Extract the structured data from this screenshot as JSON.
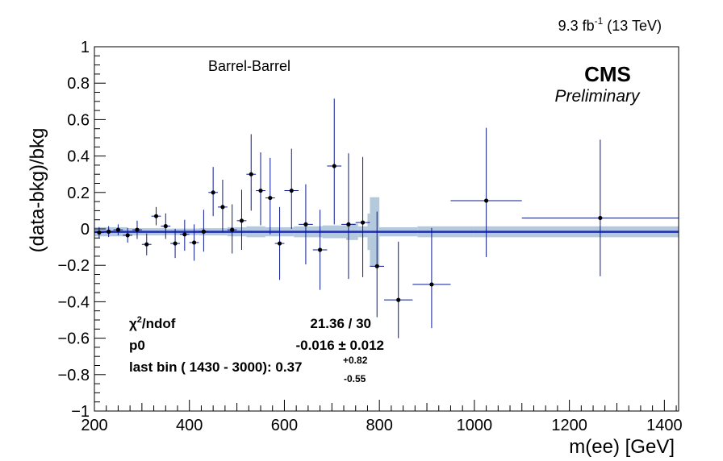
{
  "chart_data": {
    "type": "scatter",
    "lumi_label": "9.3 fb",
    "lumi_sup": "-1",
    "lumi_energy": " (13 TeV)",
    "cms_label": "CMS",
    "prelim_label": "Preliminary",
    "category_label": "Barrel-Barrel",
    "xlabel": "m(ee) [GeV]",
    "ylabel": "(data-bkg)/bkg",
    "xlim": [
      200,
      1430
    ],
    "ylim": [
      -1,
      1
    ],
    "x_ticks": [
      200,
      400,
      600,
      800,
      1000,
      1200,
      1400
    ],
    "x_tick_labels": [
      "200",
      "400",
      "600",
      "800",
      "1000",
      "1200",
      "1400"
    ],
    "y_ticks": [
      -1,
      -0.8,
      -0.6,
      -0.4,
      -0.2,
      0,
      0.2,
      0.4,
      0.6,
      0.8,
      1
    ],
    "y_tick_labels": [
      "−1",
      "−0.8",
      "−0.6",
      "−0.4",
      "−0.2",
      "0",
      "0.2",
      "0.4",
      "0.6",
      "0.8",
      "1"
    ],
    "fit": {
      "p0": -0.016,
      "p0_err": 0.012,
      "chi2_label_chi": "χ",
      "chi2_label_sup": "2",
      "chi2_label_rest": "/ndof",
      "chi2_value": "21.36 / 30",
      "p0_label": "p0",
      "p0_value": "-0.016 ± 0.012",
      "lastbin_label": "last bin ( 1430 - 3000): 0.37",
      "lastbin_up": "+0.82",
      "lastbin_down": "-0.55",
      "line_color": "#1f2fb0"
    },
    "band_color": "#b5c9dd",
    "marker_color": "#000000",
    "errbar_color": "#0b1a8f",
    "band": [
      {
        "x0": 200,
        "x1": 270,
        "half": 0.025
      },
      {
        "x0": 270,
        "x1": 350,
        "half": 0.02
      },
      {
        "x0": 350,
        "x1": 420,
        "half": 0.018
      },
      {
        "x0": 420,
        "x1": 480,
        "half": 0.02
      },
      {
        "x0": 480,
        "x1": 520,
        "half": 0.025
      },
      {
        "x0": 520,
        "x1": 560,
        "half": 0.03
      },
      {
        "x0": 560,
        "x1": 620,
        "half": 0.025
      },
      {
        "x0": 620,
        "x1": 680,
        "half": 0.03
      },
      {
        "x0": 680,
        "x1": 730,
        "half": 0.035
      },
      {
        "x0": 730,
        "x1": 755,
        "half": 0.045
      },
      {
        "x0": 755,
        "x1": 775,
        "half": 0.03
      },
      {
        "x0": 775,
        "x1": 780,
        "half": 0.1
      },
      {
        "x0": 780,
        "x1": 800,
        "half": 0.19
      },
      {
        "x0": 800,
        "x1": 880,
        "half": 0.025
      },
      {
        "x0": 880,
        "x1": 1000,
        "half": 0.03
      },
      {
        "x0": 1000,
        "x1": 1430,
        "half": 0.03
      }
    ],
    "points": [
      {
        "x": 210,
        "xerr": 10,
        "y": -0.02,
        "yup": 0.03,
        "ydn": 0.03
      },
      {
        "x": 230,
        "xerr": 10,
        "y": -0.015,
        "yup": 0.03,
        "ydn": 0.03
      },
      {
        "x": 250,
        "xerr": 10,
        "y": -0.005,
        "yup": 0.03,
        "ydn": 0.03
      },
      {
        "x": 270,
        "xerr": 10,
        "y": -0.035,
        "yup": 0.04,
        "ydn": 0.04
      },
      {
        "x": 290,
        "xerr": 10,
        "y": -0.005,
        "yup": 0.05,
        "ydn": 0.05
      },
      {
        "x": 310,
        "xerr": 10,
        "y": -0.085,
        "yup": 0.06,
        "ydn": 0.06
      },
      {
        "x": 330,
        "xerr": 10,
        "y": 0.07,
        "yup": 0.05,
        "ydn": 0.05
      },
      {
        "x": 350,
        "xerr": 10,
        "y": 0.015,
        "yup": 0.07,
        "ydn": 0.07
      },
      {
        "x": 370,
        "xerr": 10,
        "y": -0.08,
        "yup": 0.08,
        "ydn": 0.08
      },
      {
        "x": 390,
        "xerr": 10,
        "y": -0.03,
        "yup": 0.08,
        "ydn": 0.09
      },
      {
        "x": 410,
        "xerr": 10,
        "y": -0.075,
        "yup": 0.1,
        "ydn": 0.1
      },
      {
        "x": 430,
        "xerr": 10,
        "y": -0.015,
        "yup": 0.12,
        "ydn": 0.11
      },
      {
        "x": 450,
        "xerr": 10,
        "y": 0.2,
        "yup": 0.14,
        "ydn": 0.13
      },
      {
        "x": 470,
        "xerr": 10,
        "y": 0.12,
        "yup": 0.15,
        "ydn": 0.14
      },
      {
        "x": 490,
        "xerr": 10,
        "y": -0.005,
        "yup": 0.14,
        "ydn": 0.13
      },
      {
        "x": 510,
        "xerr": 10,
        "y": 0.045,
        "yup": 0.17,
        "ydn": 0.16
      },
      {
        "x": 530,
        "xerr": 10,
        "y": 0.3,
        "yup": 0.22,
        "ydn": 0.2
      },
      {
        "x": 550,
        "xerr": 10,
        "y": 0.21,
        "yup": 0.21,
        "ydn": 0.19
      },
      {
        "x": 570,
        "xerr": 10,
        "y": 0.17,
        "yup": 0.22,
        "ydn": 0.2
      },
      {
        "x": 590,
        "xerr": 10,
        "y": -0.08,
        "yup": 0.2,
        "ydn": 0.2
      },
      {
        "x": 615,
        "xerr": 15,
        "y": 0.21,
        "yup": 0.23,
        "ydn": 0.21
      },
      {
        "x": 645,
        "xerr": 15,
        "y": 0.025,
        "yup": 0.22,
        "ydn": 0.22
      },
      {
        "x": 675,
        "xerr": 15,
        "y": -0.115,
        "yup": 0.22,
        "ydn": 0.22
      },
      {
        "x": 705,
        "xerr": 15,
        "y": 0.345,
        "yup": 0.37,
        "ydn": 0.32
      },
      {
        "x": 735,
        "xerr": 15,
        "y": 0.025,
        "yup": 0.39,
        "ydn": 0.3
      },
      {
        "x": 765,
        "xerr": 15,
        "y": 0.035,
        "yup": 0.36,
        "ydn": 0.3
      },
      {
        "x": 795,
        "xerr": 15,
        "y": -0.205,
        "yup": 0.3,
        "ydn": 0.28
      },
      {
        "x": 840,
        "xerr": 30,
        "y": -0.39,
        "yup": 0.32,
        "ydn": 0.21
      },
      {
        "x": 910,
        "xerr": 40,
        "y": -0.305,
        "yup": 0.31,
        "ydn": 0.24
      },
      {
        "x": 1025,
        "xerr": 75,
        "y": 0.155,
        "yup": 0.4,
        "ydn": 0.31
      },
      {
        "x": 1265,
        "xerr": 165,
        "y": 0.06,
        "yup": 0.43,
        "ydn": 0.32
      }
    ]
  }
}
